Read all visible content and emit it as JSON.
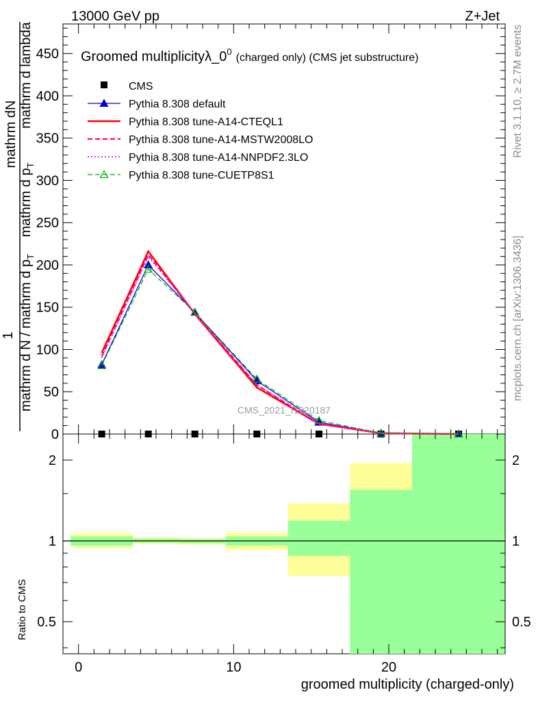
{
  "header": {
    "energy": "13000 GeV pp",
    "process": "Z+Jet"
  },
  "side": {
    "rivet": "Rivet 3.1.10, ≥ 2.7M events",
    "mcplots": "mcplots.cern.ch [arXiv:1306.3436]"
  },
  "chart_data": [
    {
      "type": "line",
      "title": "Groomed multiplicityλ_0",
      "title_sup": "0",
      "subtitle": "(charged only) (CMS jet substructure)",
      "watermark": "CMS_2021_I1920187",
      "ylabel_numerator": "mathrm dN",
      "ylabel_numerator_2": "mathrm d p",
      "ylabel_numerator_2_sub": "T",
      "ylabel_numerator_3": "mathrm d lambda",
      "ylabel_one": "1",
      "ylabel_denominator": "mathrm d N / mathrm d p",
      "ylabel_denominator_sub": "T",
      "xlabel": "groomed multiplicity (charged-only)",
      "xlim": [
        -1,
        27.5
      ],
      "ylim": [
        0,
        485
      ],
      "yticks": [
        0,
        50,
        100,
        150,
        200,
        250,
        300,
        350,
        400,
        450
      ],
      "xticks": [
        0,
        10,
        20
      ],
      "x": [
        1.5,
        4.5,
        7.5,
        11.5,
        15.5,
        19.5,
        24.5
      ],
      "series": [
        {
          "name": "CMS",
          "color": "#000000",
          "marker": "square",
          "values": [
            0,
            0,
            0,
            0,
            0,
            0,
            0
          ]
        },
        {
          "name": "Pythia 8.308 default",
          "color": "#0000cc",
          "dash": "solid",
          "width": 1.3,
          "marker": "triangle-filled",
          "values": [
            82,
            200,
            144,
            63,
            14,
            1,
            0
          ]
        },
        {
          "name": "Pythia 8.308 tune-A14-CTEQL1",
          "color": "#ff0000",
          "dash": "solid",
          "width": 2.6,
          "marker": "none",
          "values": [
            96,
            216,
            142,
            55,
            12,
            1,
            0
          ]
        },
        {
          "name": "Pythia 8.308 tune-A14-MSTW2008LO",
          "color": "#ff0077",
          "dash": "dashed",
          "width": 2.2,
          "marker": "none",
          "values": [
            92,
            212,
            143,
            58,
            12,
            1,
            0
          ]
        },
        {
          "name": "Pythia 8.308 tune-A14-NNPDF2.3LO",
          "color": "#ee22ee",
          "dash": "dotted",
          "width": 2.0,
          "marker": "none",
          "values": [
            90,
            210,
            143,
            58,
            13,
            1,
            0
          ]
        },
        {
          "name": "Pythia 8.308 tune-CUETP8S1",
          "color": "#00aa00",
          "dash": "dashed",
          "width": 1.2,
          "marker": "triangle-open",
          "values": [
            81,
            195,
            144,
            65,
            16,
            1,
            0
          ]
        }
      ]
    },
    {
      "type": "area",
      "ylabel": "Ratio to CMS",
      "log_y": true,
      "ylim": [
        0.38,
        2.5
      ],
      "yticks": [
        0.5,
        1,
        2
      ],
      "ytick_labels": [
        "0.5",
        "1",
        "2"
      ],
      "xticks": [
        0,
        10,
        20
      ],
      "xtick_labels": [
        "0",
        "10",
        "20"
      ],
      "band_colors": {
        "stat_syst": "#ffff99",
        "stat": "#99ff99"
      },
      "bins": [
        {
          "x": [
            -0.5,
            3.5
          ],
          "yellow": [
            0.94,
            1.07
          ],
          "green": [
            0.96,
            1.04
          ]
        },
        {
          "x": [
            3.5,
            6.5
          ],
          "yellow": [
            0.975,
            1.03
          ],
          "green": [
            0.985,
            1.02
          ]
        },
        {
          "x": [
            6.5,
            9.5
          ],
          "yellow": [
            0.97,
            1.025
          ],
          "green": [
            0.98,
            1.015
          ]
        },
        {
          "x": [
            9.5,
            13.5
          ],
          "yellow": [
            0.925,
            1.075
          ],
          "green": [
            0.96,
            1.04
          ]
        },
        {
          "x": [
            13.5,
            17.5
          ],
          "yellow": [
            0.74,
            1.38
          ],
          "green": [
            0.88,
            1.19
          ]
        },
        {
          "x": [
            17.5,
            21.5
          ],
          "yellow": [
            0.38,
            1.95
          ],
          "green": [
            0.38,
            1.55
          ],
          "yellow_gap": [
            0.54,
            1.55
          ]
        },
        {
          "x": [
            21.5,
            27.5
          ],
          "yellow": [
            0.38,
            2.5
          ],
          "green": [
            0.38,
            2.5
          ]
        }
      ],
      "reference_line": 1
    }
  ]
}
